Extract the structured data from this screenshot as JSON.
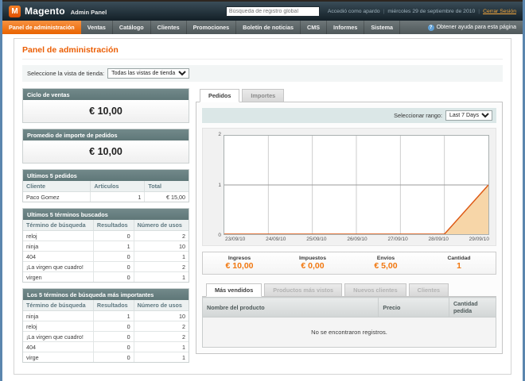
{
  "header": {
    "logo_title": "Magento",
    "logo_subtitle": "Admin Panel",
    "search_placeholder": "Búsqueda de registro global",
    "logged_in_as": "Accedió como apardo",
    "date": "miércoles 29 de septiembre de 2010",
    "logout_label": "Cerrar Sesión"
  },
  "nav": {
    "items": [
      "Panel de administración",
      "Ventas",
      "Catálogo",
      "Clientes",
      "Promociones",
      "Boletín de noticias",
      "CMS",
      "Informes",
      "Sistema"
    ],
    "help_label": "Obtener ayuda para esta página"
  },
  "page": {
    "title": "Panel de administración",
    "store_view_label": "Seleccione la vista de tienda:",
    "store_view_value": "Todas las vistas de tienda"
  },
  "left": {
    "lifetime_sales": {
      "title": "Ciclo de ventas",
      "value": "€ 10,00"
    },
    "average_orders": {
      "title": "Promedio de importe de pedidos",
      "value": "€ 10,00"
    },
    "last_orders": {
      "title": "Ultimos 5 pedidos",
      "headers": [
        "Cliente",
        "Articulos",
        "Total"
      ],
      "rows": [
        [
          "Paco Gomez",
          "1",
          "€ 15,00"
        ]
      ]
    },
    "last_search": {
      "title": "Ultimos 5 términos buscados",
      "headers": [
        "Término de búsqueda",
        "Resultados",
        "Número de usos"
      ],
      "rows": [
        [
          "reloj",
          "0",
          "2"
        ],
        [
          "ninja",
          "1",
          "10"
        ],
        [
          "404",
          "0",
          "1"
        ],
        [
          "¡La virgen que cuadro!",
          "0",
          "2"
        ],
        [
          "virgen",
          "0",
          "1"
        ]
      ]
    },
    "top_search": {
      "title": "Los 5 términos de búsqueda más importantes",
      "headers": [
        "Término de búsqueda",
        "Resultados",
        "Número de usos"
      ],
      "rows": [
        [
          "ninja",
          "1",
          "10"
        ],
        [
          "reloj",
          "0",
          "2"
        ],
        [
          "¡La virgen que cuadro!",
          "0",
          "2"
        ],
        [
          "404",
          "0",
          "1"
        ],
        [
          "virge",
          "0",
          "1"
        ]
      ]
    }
  },
  "dashboard": {
    "tabs": [
      "Pedidos",
      "Importes"
    ],
    "range_label": "Seleccionar rango:",
    "range_value": "Last 7 Days",
    "totals": [
      {
        "label": "Ingresos",
        "value": "€ 10,00"
      },
      {
        "label": "Impuestos",
        "value": "€ 0,00"
      },
      {
        "label": "Envíos",
        "value": "€ 5,00"
      },
      {
        "label": "Cantidad",
        "value": "1"
      }
    ],
    "bottom_tabs": [
      "Más vendidos",
      "Productos más vistos",
      "Nuevos clientes",
      "Clientes"
    ],
    "products_table": {
      "headers": [
        "Nombre del producto",
        "Precio",
        "Cantidad pedida"
      ],
      "empty_text": "No se encontraron registros."
    }
  },
  "chart_data": {
    "type": "area",
    "title": "Pedidos - Last 7 Days",
    "x": [
      "23/09/10",
      "24/09/10",
      "25/09/10",
      "26/09/10",
      "27/09/10",
      "28/09/10",
      "29/09/10"
    ],
    "values": [
      0,
      0,
      0,
      0,
      0,
      0,
      1
    ],
    "ylim": [
      0,
      2
    ],
    "yticks": [
      0,
      1,
      2
    ],
    "xlabel": "",
    "ylabel": "",
    "grid": true,
    "legend": "none",
    "line_color": "#dd5813",
    "fill_color": "#f7d6a8"
  },
  "colors": {
    "accent_orange": "#eb5e04",
    "value_orange": "#f1770f",
    "active_tab_orange": "#e96300",
    "header_link": "#f6a83c",
    "chart_line": "#dd5813",
    "chart_fill": "#f7d6a8",
    "box_header_teal": "#687f81"
  }
}
